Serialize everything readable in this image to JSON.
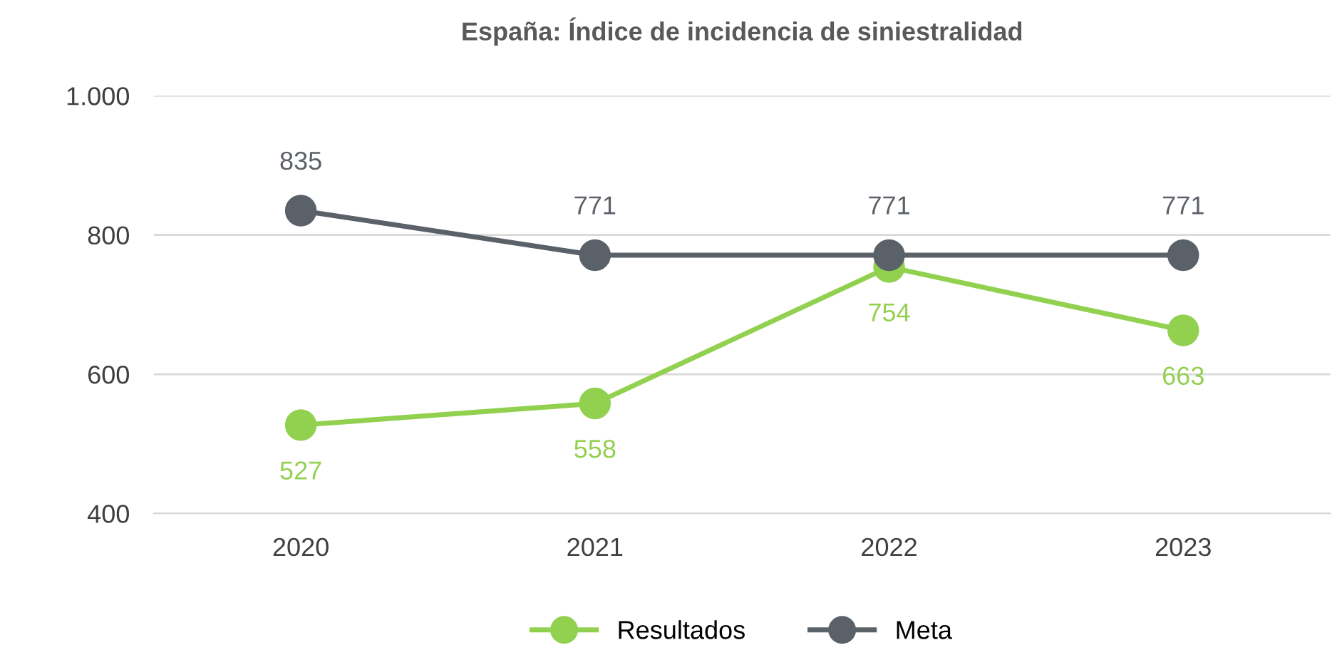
{
  "chart_data": {
    "type": "line",
    "title": "España: Índice de incidencia de siniestralidad",
    "categories": [
      "2020",
      "2021",
      "2022",
      "2023"
    ],
    "series": [
      {
        "name": "Resultados",
        "color": "#92d050",
        "values": [
          527,
          558,
          754,
          663
        ]
      },
      {
        "name": "Meta",
        "color": "#5b6169",
        "values": [
          835,
          771,
          771,
          771
        ]
      }
    ],
    "ylim": [
      400,
      1000
    ],
    "yticks": [
      400,
      600,
      800,
      {
        "value": 1000,
        "label": "1.000"
      }
    ],
    "grid": "y",
    "legend": "bottom",
    "marker": "circle",
    "line_style": "solid",
    "data_labels": true
  }
}
